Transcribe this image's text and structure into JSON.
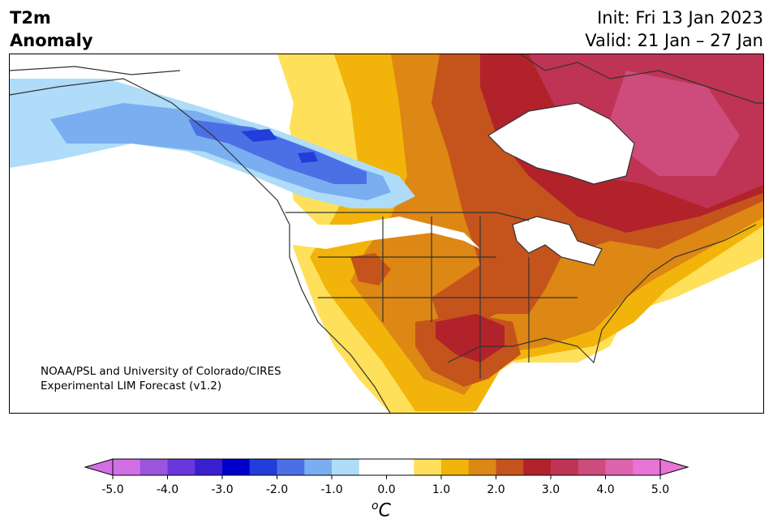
{
  "title": {
    "line1": "T2m",
    "line2": "Anomaly"
  },
  "dates": {
    "init": "Init: Fri 13 Jan 2023",
    "valid": "Valid: 21 Jan – 27 Jan"
  },
  "credit": {
    "line1": "NOAA/PSL and University of Colorado/CIRES",
    "line2": "Experimental LIM Forecast (v1.2)"
  },
  "colorbar": {
    "unit_symbol": "o",
    "unit_letter": "C",
    "ticks": [
      "-5.0",
      "-4.0",
      "-3.0",
      "-2.0",
      "-1.0",
      "0.0",
      "1.0",
      "2.0",
      "3.0",
      "4.0",
      "5.0"
    ],
    "min": -5.0,
    "max": 5.0,
    "step": 0.5,
    "colors": [
      "#d26ee6",
      "#9b55dc",
      "#6a37dc",
      "#3a1fcf",
      "#0000cd",
      "#233ddb",
      "#4b70e6",
      "#7aaef0",
      "#afdcf8",
      "#ffffff",
      "#ffffff",
      "#ffe05a",
      "#f2b40a",
      "#dd8714",
      "#c4541c",
      "#b2222a",
      "#bf3354",
      "#cd4c7b",
      "#dc63ac",
      "#e774d6"
    ],
    "under_color": "#d26ee6",
    "over_color": "#e774d6"
  },
  "map": {
    "colors": {
      "light_blue": "#afdcf8",
      "blue": "#7aaef0",
      "mid_blue": "#4b70e6",
      "dark_blue": "#233ddb",
      "yellow": "#ffe05a",
      "gold": "#f2b40a",
      "orange": "#dd8714",
      "dark_orange": "#c4541c",
      "red": "#b2222a",
      "crimson": "#bf3354",
      "pink": "#cd4c7b"
    }
  }
}
